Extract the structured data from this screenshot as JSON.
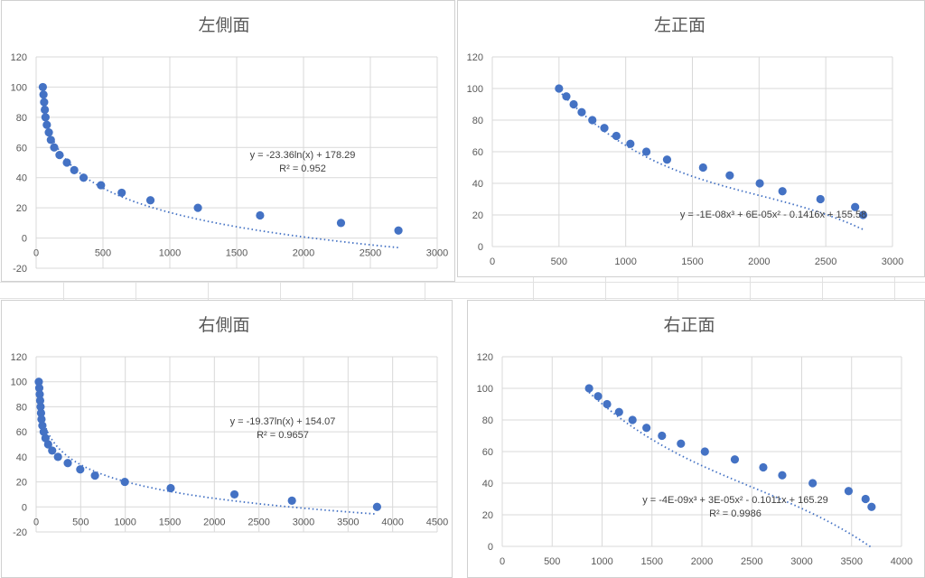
{
  "chart_data": [
    {
      "type": "scatter",
      "title": "左側面",
      "xlim": [
        0,
        3000
      ],
      "ylim": [
        -20,
        120
      ],
      "xticks": [
        0,
        500,
        1000,
        1500,
        2000,
        2500,
        3000
      ],
      "yticks": [
        -20,
        0,
        20,
        40,
        60,
        80,
        100,
        120
      ],
      "x": [
        50,
        55,
        60,
        65,
        70,
        80,
        95,
        110,
        135,
        175,
        230,
        285,
        355,
        485,
        640,
        855,
        1210,
        1675,
        2280,
        2710
      ],
      "y": [
        100,
        95,
        90,
        85,
        80,
        75,
        70,
        65,
        60,
        55,
        50,
        45,
        40,
        35,
        30,
        25,
        20,
        15,
        10,
        5
      ],
      "trendline": {
        "kind": "log",
        "a": -23.36,
        "b": 178.29
      },
      "equation": "y = -23.36ln(x) + 178.29",
      "r2": "R² = 0.952"
    },
    {
      "type": "scatter",
      "title": "左正面",
      "xlim": [
        0,
        3000
      ],
      "ylim": [
        0,
        120
      ],
      "xticks": [
        0,
        500,
        1000,
        1500,
        2000,
        2500,
        3000
      ],
      "yticks": [
        0,
        20,
        40,
        60,
        80,
        100,
        120
      ],
      "x": [
        500,
        555,
        610,
        670,
        750,
        840,
        930,
        1035,
        1155,
        1310,
        1580,
        1780,
        2005,
        2175,
        2460,
        2720,
        2780
      ],
      "y": [
        100,
        95,
        90,
        85,
        80,
        75,
        70,
        65,
        60,
        55,
        50,
        45,
        40,
        35,
        30,
        25,
        20
      ],
      "trendline": {
        "kind": "poly3",
        "c": [
          155.58,
          -0.1416,
          6e-05,
          -1e-08
        ]
      },
      "equation": "y = -1E-08x³ + 6E-05x² - 0.1416x + 155.58",
      "r2": ""
    },
    {
      "type": "scatter",
      "title": "右側面",
      "xlim": [
        0,
        4500
      ],
      "ylim": [
        -20,
        120
      ],
      "xticks": [
        0,
        500,
        1000,
        1500,
        2000,
        2500,
        3000,
        3500,
        4000,
        4500
      ],
      "yticks": [
        -20,
        0,
        20,
        40,
        60,
        80,
        100,
        120
      ],
      "x": [
        30,
        35,
        40,
        45,
        50,
        55,
        60,
        70,
        85,
        105,
        135,
        180,
        245,
        355,
        495,
        660,
        995,
        1510,
        2225,
        2870,
        3825
      ],
      "y": [
        100,
        95,
        90,
        85,
        80,
        75,
        70,
        65,
        60,
        55,
        50,
        45,
        40,
        35,
        30,
        25,
        20,
        15,
        10,
        5,
        0
      ],
      "trendline": {
        "kind": "log",
        "a": -19.37,
        "b": 154.07
      },
      "equation": "y = -19.37ln(x) + 154.07",
      "r2": "R² = 0.9657"
    },
    {
      "type": "scatter",
      "title": "右正面",
      "xlim": [
        0,
        4000
      ],
      "ylim": [
        0,
        120
      ],
      "xticks": [
        0,
        500,
        1000,
        1500,
        2000,
        2500,
        3000,
        3500,
        4000
      ],
      "yticks": [
        0,
        20,
        40,
        60,
        80,
        100,
        120
      ],
      "x": [
        870,
        960,
        1050,
        1170,
        1305,
        1445,
        1600,
        1790,
        2030,
        2330,
        2615,
        2805,
        3110,
        3470,
        3640,
        3700
      ],
      "y": [
        100,
        95,
        90,
        85,
        80,
        75,
        70,
        65,
        60,
        55,
        50,
        45,
        40,
        35,
        30,
        25
      ],
      "trendline": {
        "kind": "poly3",
        "c": [
          165.29,
          -0.1011,
          3e-05,
          -4e-09
        ]
      },
      "equation": "y = -4E-09x³ + 3E-05x² - 0.1011x + 165.29",
      "r2": "R² = 0.9986"
    }
  ]
}
